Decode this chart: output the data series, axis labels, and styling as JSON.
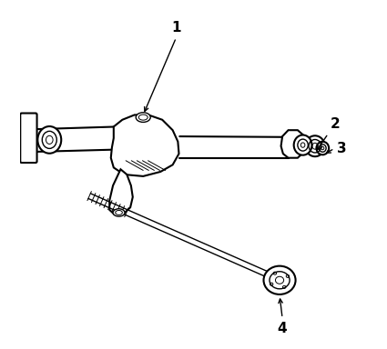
{
  "bg_color": "#ffffff",
  "line_color": "#000000",
  "fig_width": 4.25,
  "fig_height": 3.84,
  "dpi": 100
}
